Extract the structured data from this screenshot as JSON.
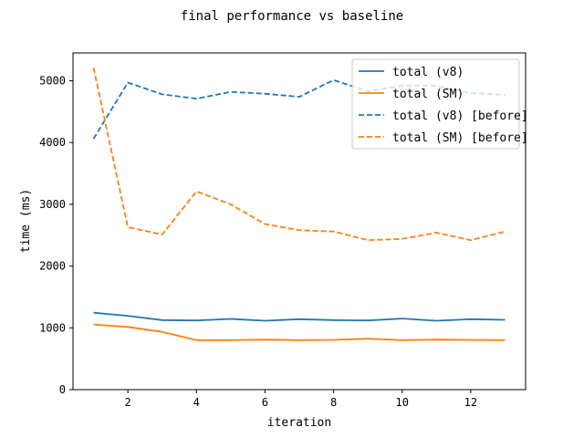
{
  "chart_data": {
    "type": "line",
    "title": "final performance vs baseline",
    "xlabel": "iteration",
    "ylabel": "time (ms)",
    "xlim": [
      0.4,
      13.6
    ],
    "ylim": [
      0,
      5450
    ],
    "xticks": [
      2,
      4,
      6,
      8,
      10,
      12
    ],
    "yticks": [
      0,
      1000,
      2000,
      3000,
      4000,
      5000
    ],
    "grid": false,
    "legend_position": "top-right",
    "x": [
      1,
      2,
      3,
      4,
      5,
      6,
      7,
      8,
      9,
      10,
      11,
      12,
      13
    ],
    "series": [
      {
        "name": "total (v8)",
        "color": "#1f77b4",
        "style": "solid",
        "values": [
          1245,
          1195,
          1125,
          1120,
          1145,
          1115,
          1140,
          1125,
          1120,
          1150,
          1115,
          1140,
          1130
        ]
      },
      {
        "name": "total (SM)",
        "color": "#ff7f0e",
        "style": "solid",
        "values": [
          1055,
          1015,
          935,
          800,
          800,
          810,
          800,
          805,
          825,
          800,
          810,
          805,
          800
        ]
      },
      {
        "name": "total (v8) [before]",
        "color": "#1f77b4",
        "style": "dashed",
        "values": [
          4060,
          4970,
          4780,
          4710,
          4820,
          4790,
          4740,
          5010,
          4830,
          4920,
          4920,
          4800,
          4770
        ]
      },
      {
        "name": "total (SM) [before]",
        "color": "#ff7f0e",
        "style": "dashed",
        "values": [
          5210,
          2630,
          2510,
          3210,
          3000,
          2680,
          2580,
          2560,
          2420,
          2440,
          2540,
          2420,
          2560
        ]
      }
    ]
  }
}
